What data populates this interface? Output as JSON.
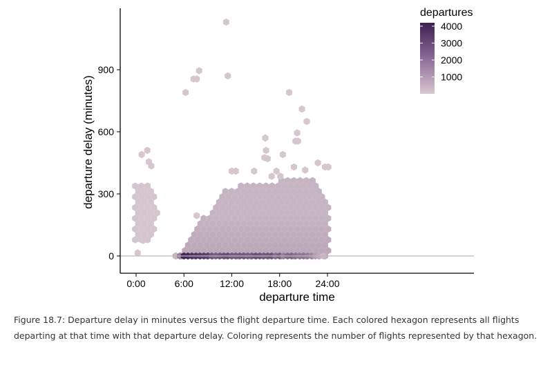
{
  "chart_data": {
    "type": "hexbin",
    "xlabel": "departure time",
    "ylabel": "departure delay (minutes)",
    "x_unit": "hours",
    "xlim": [
      -1,
      25.5
    ],
    "ylim": [
      -60,
      1150
    ],
    "x_ticks": [
      {
        "value": 0,
        "label": "0:00"
      },
      {
        "value": 6,
        "label": "6:00"
      },
      {
        "value": 12,
        "label": "12:00"
      },
      {
        "value": 18,
        "label": "18:00"
      },
      {
        "value": 24,
        "label": "24:00"
      }
    ],
    "y_ticks": [
      {
        "value": 0,
        "label": "0"
      },
      {
        "value": 300,
        "label": "300"
      },
      {
        "value": 600,
        "label": "600"
      },
      {
        "value": 900,
        "label": "900"
      }
    ],
    "reference_line_y": 0,
    "legend": {
      "title": "departures",
      "placement": "top-right",
      "range": [
        0,
        4200
      ],
      "labels": [
        {
          "value": 4000,
          "label": "4000"
        },
        {
          "value": 3000,
          "label": "3000"
        },
        {
          "value": 2000,
          "label": "2000"
        },
        {
          "value": 1000,
          "label": "1000"
        }
      ]
    },
    "colors": {
      "low": "#d8c8d0",
      "high": "#3d1f52",
      "refline": "#c0b4bc"
    },
    "bulk_region": [
      [
        4.9,
        0
      ],
      [
        9.5,
        240
      ],
      [
        11.5,
        330
      ],
      [
        14,
        350
      ],
      [
        17,
        360
      ],
      [
        20,
        370
      ],
      [
        22.5,
        390
      ],
      [
        24.2,
        250
      ],
      [
        24.3,
        0
      ],
      [
        23.5,
        -20
      ],
      [
        5.0,
        -20
      ]
    ],
    "early_cluster": {
      "x_range": [
        -0.3,
        2.7
      ],
      "y_range": [
        60,
        360
      ]
    },
    "sparse_points": [
      {
        "x": 11.3,
        "y": 1130
      },
      {
        "x": 7.9,
        "y": 895
      },
      {
        "x": 7.2,
        "y": 855
      },
      {
        "x": 7.6,
        "y": 855
      },
      {
        "x": 11.5,
        "y": 870
      },
      {
        "x": 6.2,
        "y": 790
      },
      {
        "x": 19.2,
        "y": 790
      },
      {
        "x": 20.8,
        "y": 710
      },
      {
        "x": 21.4,
        "y": 650
      },
      {
        "x": 20.2,
        "y": 595
      },
      {
        "x": 20.0,
        "y": 555
      },
      {
        "x": 20.3,
        "y": 555
      },
      {
        "x": 16.2,
        "y": 570
      },
      {
        "x": 16.3,
        "y": 510
      },
      {
        "x": 18.4,
        "y": 490
      },
      {
        "x": 16.1,
        "y": 475
      },
      {
        "x": 16.5,
        "y": 470
      },
      {
        "x": 1.4,
        "y": 510
      },
      {
        "x": 0.7,
        "y": 490
      },
      {
        "x": 1.6,
        "y": 455
      },
      {
        "x": 1.9,
        "y": 435
      },
      {
        "x": 0.2,
        "y": 15
      },
      {
        "x": 0.9,
        "y": 75
      },
      {
        "x": 7.6,
        "y": 195
      },
      {
        "x": 12.0,
        "y": 410
      },
      {
        "x": 12.5,
        "y": 410
      },
      {
        "x": 14.8,
        "y": 410
      },
      {
        "x": 17.6,
        "y": 410
      },
      {
        "x": 19.8,
        "y": 430
      },
      {
        "x": 22.8,
        "y": 450
      },
      {
        "x": 23.7,
        "y": 430
      },
      {
        "x": 24.1,
        "y": 430
      },
      {
        "x": 17.0,
        "y": 385
      },
      {
        "x": 18.1,
        "y": 385
      },
      {
        "x": 21.2,
        "y": 415
      }
    ],
    "dense_band": {
      "y": 0,
      "counts_by_hour": [
        {
          "x": 5.0,
          "count": 300
        },
        {
          "x": 5.5,
          "count": 1500
        },
        {
          "x": 6.0,
          "count": 4000
        },
        {
          "x": 6.5,
          "count": 3900
        },
        {
          "x": 7.0,
          "count": 3600
        },
        {
          "x": 7.5,
          "count": 3500
        },
        {
          "x": 8.0,
          "count": 3400
        },
        {
          "x": 8.5,
          "count": 3300
        },
        {
          "x": 9.0,
          "count": 3200
        },
        {
          "x": 9.5,
          "count": 2600
        },
        {
          "x": 10.0,
          "count": 2400
        },
        {
          "x": 10.5,
          "count": 2600
        },
        {
          "x": 11.0,
          "count": 2800
        },
        {
          "x": 11.5,
          "count": 2900
        },
        {
          "x": 12.0,
          "count": 2500
        },
        {
          "x": 12.5,
          "count": 2500
        },
        {
          "x": 13.0,
          "count": 2600
        },
        {
          "x": 13.5,
          "count": 2600
        },
        {
          "x": 14.0,
          "count": 2400
        },
        {
          "x": 14.5,
          "count": 2500
        },
        {
          "x": 15.0,
          "count": 2800
        },
        {
          "x": 15.5,
          "count": 2700
        },
        {
          "x": 16.0,
          "count": 2500
        },
        {
          "x": 16.5,
          "count": 2600
        },
        {
          "x": 17.0,
          "count": 2700
        },
        {
          "x": 17.5,
          "count": 2000
        },
        {
          "x": 18.0,
          "count": 2400
        },
        {
          "x": 18.5,
          "count": 1600
        },
        {
          "x": 19.0,
          "count": 2100
        },
        {
          "x": 19.5,
          "count": 2200
        },
        {
          "x": 20.0,
          "count": 1900
        },
        {
          "x": 20.5,
          "count": 1700
        },
        {
          "x": 21.0,
          "count": 1800
        },
        {
          "x": 21.5,
          "count": 1600
        },
        {
          "x": 22.0,
          "count": 1300
        },
        {
          "x": 22.5,
          "count": 800
        },
        {
          "x": 23.0,
          "count": 500
        },
        {
          "x": 23.5,
          "count": 250
        }
      ]
    }
  },
  "caption": "Figure 18.7: Departure delay in minutes versus the flight departure time. Each colored hexagon represents all flights departing at that time with that departure delay. Coloring represents the number of flights represented by that hexagon."
}
